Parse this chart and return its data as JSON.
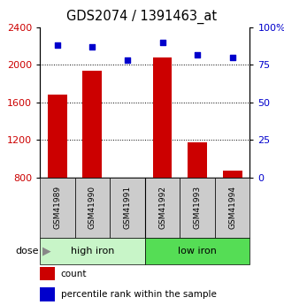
{
  "title": "GDS2074 / 1391463_at",
  "samples": [
    "GSM41989",
    "GSM41990",
    "GSM41991",
    "GSM41992",
    "GSM41993",
    "GSM41994"
  ],
  "counts": [
    1680,
    1940,
    790,
    2080,
    1170,
    870
  ],
  "percentiles": [
    88,
    87,
    78,
    90,
    82,
    80
  ],
  "groups": [
    {
      "label": "high iron",
      "start": 0,
      "end": 3,
      "color": "#c8f5c8"
    },
    {
      "label": "low iron",
      "start": 3,
      "end": 6,
      "color": "#55dd55"
    }
  ],
  "ylim_left": [
    800,
    2400
  ],
  "ylim_right": [
    0,
    100
  ],
  "yticks_left": [
    800,
    1200,
    1600,
    2000,
    2400
  ],
  "yticks_right": [
    0,
    25,
    50,
    75,
    100
  ],
  "yticklabels_right": [
    "0",
    "25",
    "50",
    "75",
    "100%"
  ],
  "bar_color": "#cc0000",
  "dot_color": "#0000cc",
  "bar_width": 0.55,
  "left_tick_color": "#cc0000",
  "right_tick_color": "#0000cc",
  "legend_items": [
    "count",
    "percentile rank within the sample"
  ],
  "legend_colors": [
    "#cc0000",
    "#0000cc"
  ],
  "dose_label": "dose",
  "sample_label_bg": "#cccccc"
}
